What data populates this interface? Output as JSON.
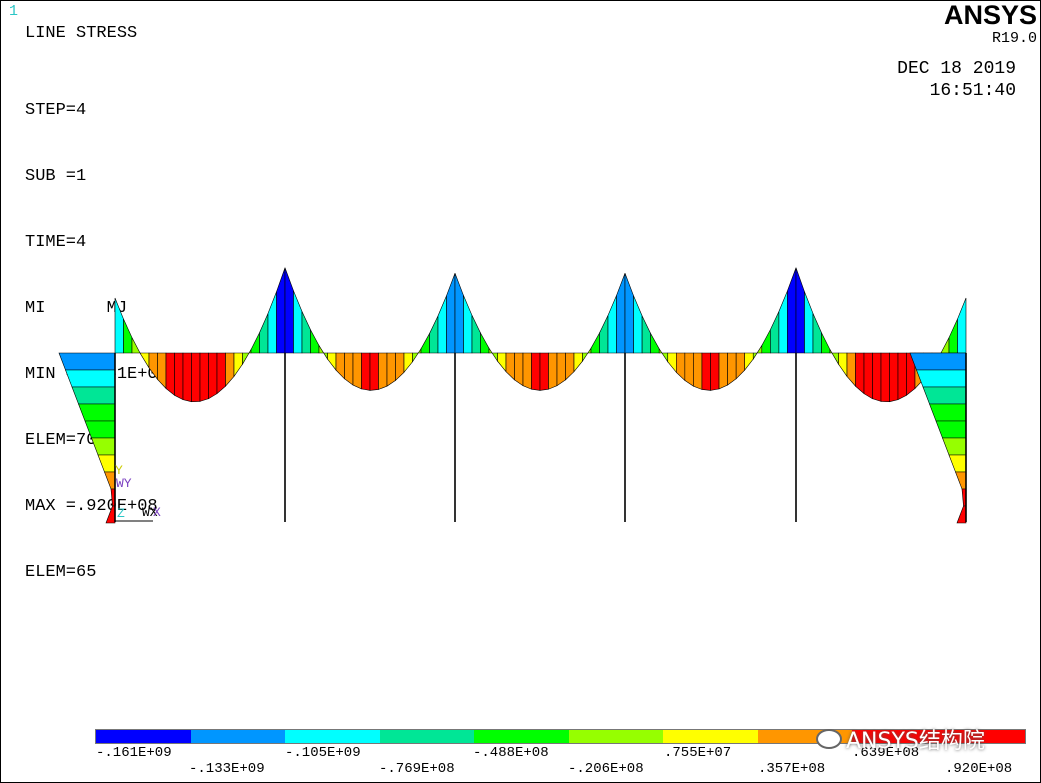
{
  "window_number": "1",
  "title": "LINE STRESS",
  "info_lines": [
    "STEP=4",
    "SUB =1",
    "TIME=4",
    "MI      MJ",
    "MIN =-.161E+09",
    "ELEM=70",
    "MAX =.920E+08",
    "ELEM=65"
  ],
  "brand": {
    "name": "ANSYS",
    "version": "R19.0"
  },
  "date": "DEC 18 2019",
  "time": "16:51:40",
  "triad": {
    "y": "Y",
    "wy": "WY",
    "wx": "WX",
    "x": "X",
    "z": "Z"
  },
  "legend": {
    "colors": [
      "#0000ff",
      "#0096ff",
      "#00ffff",
      "#00e696",
      "#00ff00",
      "#96ff00",
      "#ffff00",
      "#ff9600",
      "#ff0000"
    ],
    "upper_labels": [
      "-.161E+09",
      "-.105E+09",
      "-.488E+08",
      ".755E+07",
      ".639E+08"
    ],
    "lower_labels": [
      "-.133E+09",
      "-.769E+08",
      "-.206E+08",
      ".357E+08",
      ".920E+08"
    ],
    "min": -161000000,
    "max": 92000000
  },
  "watermark": "ANSYS结构院",
  "colors": {
    "background": "#ffffff",
    "element_lines": "#000000",
    "window_number": "#2bc6c6"
  }
}
